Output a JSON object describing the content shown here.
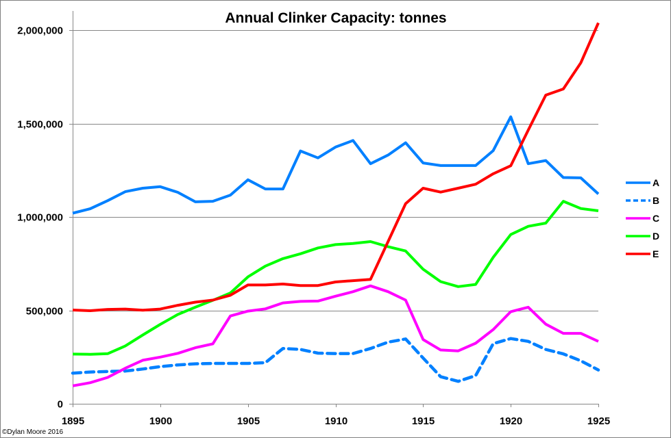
{
  "chart_data": {
    "type": "line",
    "title": "Annual Clinker Capacity: tonnes",
    "xlabel": "",
    "ylabel": "",
    "x": [
      1895,
      1896,
      1897,
      1898,
      1899,
      1900,
      1901,
      1902,
      1903,
      1904,
      1905,
      1906,
      1907,
      1908,
      1909,
      1910,
      1911,
      1912,
      1913,
      1914,
      1915,
      1916,
      1917,
      1918,
      1919,
      1920,
      1921,
      1922,
      1923,
      1924,
      1925
    ],
    "xlim": [
      1895,
      1925
    ],
    "ylim": [
      0,
      2000000
    ],
    "x_ticks": [
      1895,
      1900,
      1905,
      1910,
      1915,
      1920,
      1925
    ],
    "x_tick_labels": [
      "1895",
      "1900",
      "1905",
      "1910",
      "1915",
      "1920",
      "1925"
    ],
    "y_ticks": [
      0,
      500000,
      1000000,
      1500000,
      2000000
    ],
    "y_tick_labels": [
      "0",
      "500,000",
      "1,000,000",
      "1,500,000",
      "2,000,000"
    ],
    "grid": "horizontal",
    "legend_position": "right",
    "series": [
      {
        "name": "A",
        "color": "#0080FF",
        "dash": "solid",
        "values": [
          1020000,
          1044000,
          1087000,
          1135000,
          1154000,
          1162000,
          1132000,
          1081000,
          1084000,
          1117000,
          1199000,
          1150000,
          1150000,
          1353000,
          1316000,
          1374000,
          1409000,
          1285000,
          1331000,
          1397000,
          1289000,
          1275000,
          1275000,
          1275000,
          1355000,
          1536000,
          1285000,
          1302000,
          1211000,
          1209000,
          1123000
        ]
      },
      {
        "name": "B",
        "color": "#0080FF",
        "dash": "dashed",
        "values": [
          164000,
          170000,
          173000,
          175000,
          186000,
          199000,
          208000,
          214000,
          216000,
          216000,
          216000,
          220000,
          296000,
          291000,
          271000,
          269000,
          269000,
          296000,
          330000,
          347000,
          245000,
          145000,
          120000,
          151000,
          322000,
          349000,
          334000,
          291000,
          267000,
          230000,
          181000
        ]
      },
      {
        "name": "C",
        "color": "#FF00FF",
        "dash": "solid",
        "values": [
          96000,
          113000,
          141000,
          190000,
          233000,
          250000,
          270000,
          300000,
          321000,
          470000,
          496000,
          508000,
          540000,
          548000,
          550000,
          576000,
          600000,
          631000,
          600000,
          555000,
          344000,
          288000,
          283000,
          324000,
          397000,
          493000,
          517000,
          426000,
          377000,
          377000,
          334000
        ]
      },
      {
        "name": "D",
        "color": "#00FF00",
        "dash": "solid",
        "values": [
          266000,
          265000,
          268000,
          309000,
          368000,
          425000,
          478000,
          517000,
          554000,
          593000,
          679000,
          737000,
          777000,
          803000,
          834000,
          852000,
          858000,
          868000,
          841000,
          818000,
          720000,
          654000,
          627000,
          639000,
          784000,
          906000,
          950000,
          967000,
          1084000,
          1045000,
          1033000
        ]
      },
      {
        "name": "E",
        "color": "#FF0000",
        "dash": "solid",
        "values": [
          502000,
          498000,
          505000,
          507000,
          501000,
          507000,
          527000,
          544000,
          555000,
          581000,
          636000,
          636000,
          641000,
          633000,
          633000,
          652000,
          659000,
          666000,
          868000,
          1071000,
          1154000,
          1133000,
          1154000,
          1175000,
          1231000,
          1274000,
          1465000,
          1652000,
          1685000,
          1825000,
          2039000
        ]
      }
    ]
  },
  "credit": "©Dylan Moore 2016"
}
